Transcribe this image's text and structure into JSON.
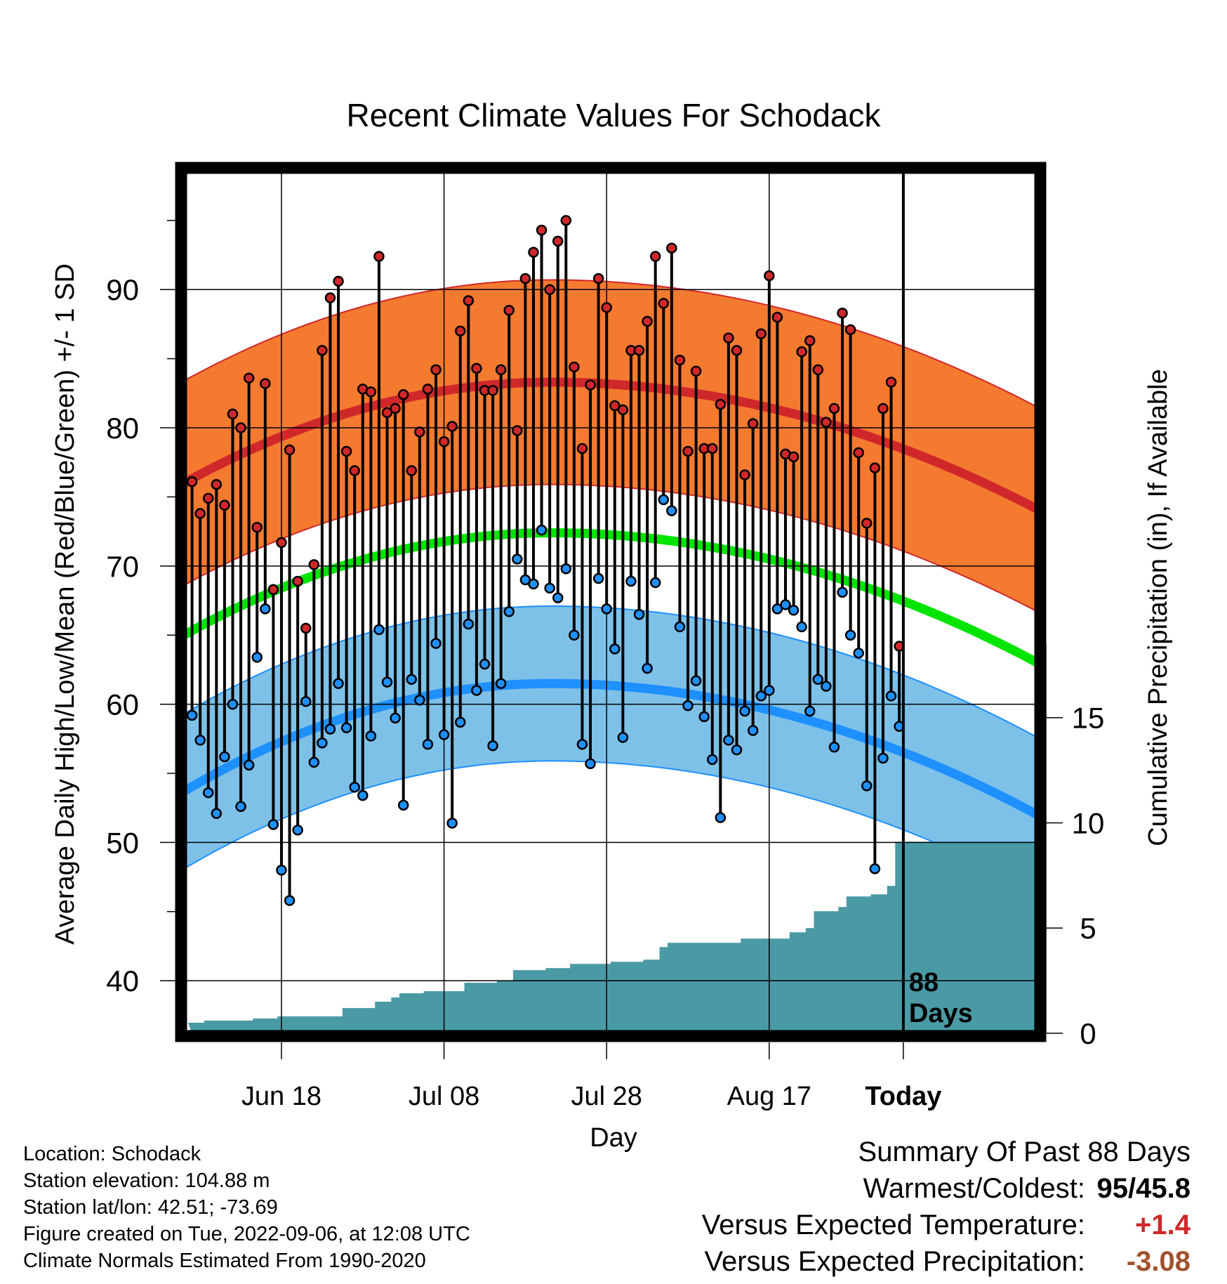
{
  "chart_data": {
    "type": "line",
    "title": "Recent Climate Values For Schodack",
    "xlabel": "Day",
    "ylabel": "Average Daily High/Low/Mean (Red/Blue/Green) +/- 1 SD",
    "y2label": "Cumulative Precipitation (in), If Available",
    "x_ticks": [
      "Jun 18",
      "Jul 08",
      "Jul 28",
      "Aug 17",
      "Today"
    ],
    "y_ticks": [
      40,
      50,
      60,
      70,
      80,
      90
    ],
    "y2_ticks": [
      0,
      5,
      10,
      15
    ],
    "ylim": [
      36.2,
      98.6
    ],
    "y2lim": [
      0,
      41
    ],
    "today_label": [
      "88",
      "Days"
    ],
    "days_shown": 88,
    "grid": true,
    "highs": [
      76.1,
      73.8,
      74.9,
      75.9,
      74.4,
      81.0,
      80.0,
      83.6,
      72.8,
      83.2,
      68.3,
      71.7,
      78.4,
      68.9,
      65.5,
      70.1,
      85.6,
      89.4,
      90.6,
      78.3,
      76.9,
      82.8,
      82.6,
      92.4,
      81.1,
      81.4,
      82.4,
      76.9,
      79.7,
      82.8,
      84.2,
      79.0,
      80.1,
      87.0,
      89.2,
      84.3,
      82.7,
      82.7,
      84.2,
      88.5,
      79.8,
      90.8,
      92.7,
      94.3,
      90.0,
      93.5,
      95.0,
      84.4,
      78.5,
      83.1,
      90.8,
      88.7,
      81.6,
      81.3,
      85.6,
      85.6,
      87.7,
      92.4,
      89.0,
      93.0,
      84.9,
      78.3,
      84.1,
      78.5,
      78.5,
      81.7,
      86.5,
      85.6,
      76.6,
      80.3,
      86.8,
      91.0,
      88.0,
      78.1,
      77.9,
      85.5,
      86.3,
      84.2,
      80.4,
      81.4,
      88.3,
      87.1,
      78.2,
      73.1,
      77.1,
      81.4,
      83.3,
      64.2
    ],
    "lows": [
      59.2,
      57.4,
      53.6,
      52.1,
      56.2,
      60.0,
      52.6,
      55.6,
      63.4,
      66.9,
      51.3,
      48.0,
      45.8,
      50.9,
      60.2,
      55.8,
      57.2,
      58.2,
      61.5,
      58.3,
      54.0,
      53.4,
      57.7,
      65.4,
      61.6,
      59.0,
      52.7,
      61.8,
      60.3,
      57.1,
      64.4,
      57.8,
      51.4,
      58.7,
      65.8,
      61.0,
      62.9,
      57.0,
      61.5,
      66.7,
      70.5,
      69.0,
      68.7,
      72.6,
      68.4,
      67.7,
      69.8,
      65.0,
      57.1,
      55.7,
      69.1,
      66.9,
      64.0,
      57.6,
      68.9,
      66.5,
      62.6,
      68.8,
      74.8,
      74.0,
      65.6,
      59.9,
      61.7,
      59.1,
      56.0,
      51.8,
      57.4,
      56.7,
      59.5,
      58.1,
      60.6,
      61.0,
      66.9,
      67.2,
      66.8,
      65.6,
      59.5,
      61.8,
      61.3,
      56.9,
      68.1,
      65.0,
      63.7,
      54.1,
      48.1,
      56.1,
      60.6,
      58.4
    ],
    "normal_high": [
      76.0,
      83.3,
      83.3,
      74.1
    ],
    "normal_low": [
      53.7,
      61.5,
      61.5,
      52.0
    ],
    "normal_mean": [
      65.0,
      72.4,
      72.4,
      63.0
    ],
    "sd_high": 7.4,
    "sd_low": 5.6,
    "cumulative_precip": [
      0.5,
      0.5,
      0.6,
      0.6,
      0.6,
      0.6,
      0.6,
      0.6,
      0.7,
      0.7,
      0.7,
      0.8,
      0.8,
      0.8,
      0.8,
      0.8,
      0.8,
      0.8,
      0.8,
      1.2,
      1.2,
      1.2,
      1.2,
      1.5,
      1.5,
      1.7,
      1.9,
      1.9,
      1.9,
      2.0,
      2.0,
      2.0,
      2.0,
      2.0,
      2.4,
      2.4,
      2.4,
      2.4,
      2.5,
      2.5,
      3.0,
      3.0,
      3.0,
      3.0,
      3.1,
      3.1,
      3.1,
      3.3,
      3.3,
      3.3,
      3.3,
      3.3,
      3.4,
      3.4,
      3.4,
      3.4,
      3.5,
      3.5,
      4.1,
      4.3,
      4.3,
      4.3,
      4.3,
      4.3,
      4.3,
      4.3,
      4.3,
      4.3,
      4.5,
      4.5,
      4.5,
      4.5,
      4.5,
      4.5,
      4.8,
      4.8,
      5.0,
      5.8,
      5.8,
      5.8,
      6.0,
      6.5,
      6.5,
      6.5,
      6.6,
      6.6,
      7.0,
      9.1
    ],
    "colors": {
      "high_band": "#f47a30",
      "high_line": "#d0282a",
      "low_band": "#7ec1e8",
      "low_line": "#1e90ff",
      "mean_line": "#00e400",
      "precip_fill": "#4a9aa5",
      "warm_value": "#d0282a",
      "precip_value": "#a0522d"
    }
  },
  "info": {
    "location": "Location: Schodack",
    "elevation": "Station elevation: 104.88 m",
    "latlon": "Station lat/lon: 42.51; -73.69",
    "created": "Figure created on Tue, 2022-09-06, at 12:08 UTC",
    "normals": "Climate Normals Estimated From 1990-2020"
  },
  "summary": {
    "title": "Summary Of Past 88 Days",
    "warm_cold_label": "Warmest/Coldest:",
    "warmest": "95",
    "slash": "/",
    "coldest": "45.8",
    "temp_label": "Versus Expected Temperature:",
    "temp_value": "+1.4",
    "precip_label": "Versus Expected Precipitation:",
    "precip_value": "-3.08"
  }
}
